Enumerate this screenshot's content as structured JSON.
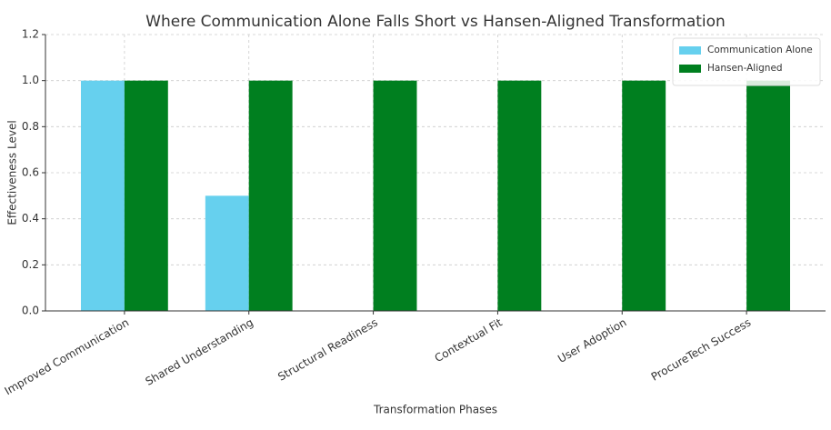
{
  "chart_data": {
    "type": "bar",
    "title": "Where Communication Alone Falls Short vs Hansen-Aligned Transformation",
    "x_label": "Transformation Phases",
    "y_label": "Effectiveness Level",
    "categories": [
      "Improved Communication",
      "Shared Understanding",
      "Structural Readiness",
      "Contextual Fit",
      "User Adoption",
      "ProcureTech Success"
    ],
    "series": [
      {
        "name": "Communication Alone",
        "color": "#66d0ee",
        "values": [
          1,
          0.5,
          0,
          0,
          0,
          0
        ]
      },
      {
        "name": "Hansen-Aligned",
        "color": "#007f1f",
        "values": [
          1,
          1,
          1,
          1,
          1,
          1
        ]
      }
    ],
    "ylim": [
      0,
      1.2
    ],
    "yticks": [
      {
        "value": 0,
        "label": "0.0"
      },
      0.2,
      0.4,
      0.6,
      0.8,
      {
        "value": 1,
        "label": "1.0"
      },
      1.2
    ],
    "grid": true,
    "legend": "upper right"
  }
}
